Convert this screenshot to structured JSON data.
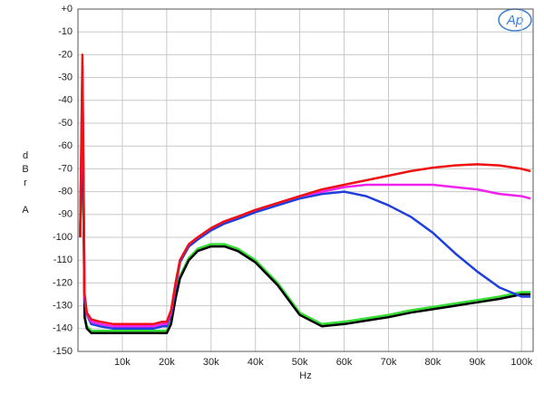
{
  "chart_data": {
    "type": "line",
    "xlabel": "Hz",
    "ylabel": "dBr A",
    "logo": "Ap",
    "x": [
      500,
      1000,
      1500,
      2000,
      3000,
      5000,
      8000,
      11000,
      14000,
      17000,
      19000,
      20000,
      21000,
      22000,
      23000,
      25000,
      27000,
      30000,
      33000,
      36000,
      40000,
      45000,
      50000,
      55000,
      60000,
      65000,
      70000,
      75000,
      80000,
      85000,
      90000,
      95000,
      100000,
      102000
    ],
    "series": [
      {
        "name": "green",
        "color": "#33dd33",
        "values": [
          -100,
          -46,
          -134,
          -139,
          -141,
          -141,
          -141,
          -141,
          -141,
          -141,
          -141,
          -141,
          -137,
          -126,
          -117,
          -109,
          -105,
          -103,
          -103,
          -105,
          -110,
          -120,
          -133,
          -138,
          -137,
          -135.5,
          -134,
          -132,
          -130.5,
          -129,
          -127.5,
          -126,
          -124,
          -124
        ]
      },
      {
        "name": "black",
        "color": "#000000",
        "values": [
          -100,
          -45,
          -135,
          -140,
          -142,
          -142,
          -142,
          -142,
          -142,
          -142,
          -142,
          -142,
          -138,
          -127,
          -118,
          -110,
          -106,
          -104,
          -104,
          -106,
          -111,
          -121,
          -134,
          -139,
          -138,
          -136.5,
          -135,
          -133,
          -131.5,
          -130,
          -128.5,
          -127,
          -125,
          -125
        ]
      },
      {
        "name": "blue",
        "color": "#1f3fdd",
        "values": [
          -100,
          -30,
          -128,
          -134,
          -138,
          -139,
          -140,
          -140,
          -140,
          -140,
          -139,
          -139,
          -134,
          -122,
          -111,
          -104,
          -101,
          -97,
          -94,
          -92,
          -89,
          -86,
          -83,
          -81,
          -80,
          -82,
          -86,
          -91,
          -98,
          -107,
          -115,
          -122,
          -126,
          -126
        ]
      },
      {
        "name": "magenta",
        "color": "#ee22ee",
        "values": [
          -100,
          -25,
          -126,
          -134,
          -137,
          -138,
          -139,
          -139,
          -139,
          -139,
          -138,
          -138,
          -133,
          -121,
          -110,
          -103,
          -100,
          -96,
          -93,
          -91,
          -88,
          -85,
          -82,
          -80,
          -78,
          -77,
          -77,
          -77,
          -77,
          -78,
          -79,
          -81,
          -82,
          -83
        ]
      },
      {
        "name": "red",
        "color": "#ee1111",
        "values": [
          -100,
          -20,
          -125,
          -133,
          -136,
          -137,
          -138,
          -138,
          -138,
          -138,
          -137,
          -137,
          -132,
          -120,
          -110,
          -103,
          -100,
          -96,
          -93,
          -91,
          -88,
          -85,
          -82,
          -79,
          -77,
          -75,
          -73,
          -71,
          -69.5,
          -68.5,
          -68,
          -68.5,
          -70,
          -71
        ]
      }
    ],
    "xlim": [
      0,
      102600
    ],
    "xticks": [
      {
        "value": 10000,
        "label": "10k"
      },
      {
        "value": 20000,
        "label": "20k"
      },
      {
        "value": 30000,
        "label": "30k"
      },
      {
        "value": 40000,
        "label": "40k"
      },
      {
        "value": 50000,
        "label": "50k"
      },
      {
        "value": 60000,
        "label": "60k"
      },
      {
        "value": 70000,
        "label": "70k"
      },
      {
        "value": 80000,
        "label": "80k"
      },
      {
        "value": 90000,
        "label": "90k"
      },
      {
        "value": 100000,
        "label": "100k"
      }
    ],
    "ylim": [
      -150,
      0
    ],
    "yticks": [
      {
        "value": 0,
        "label": "+0"
      },
      -10,
      -20,
      -30,
      -40,
      -50,
      -60,
      -70,
      -80,
      -90,
      -100,
      -110,
      -120,
      -130,
      -140,
      -150
    ],
    "grid": true
  }
}
